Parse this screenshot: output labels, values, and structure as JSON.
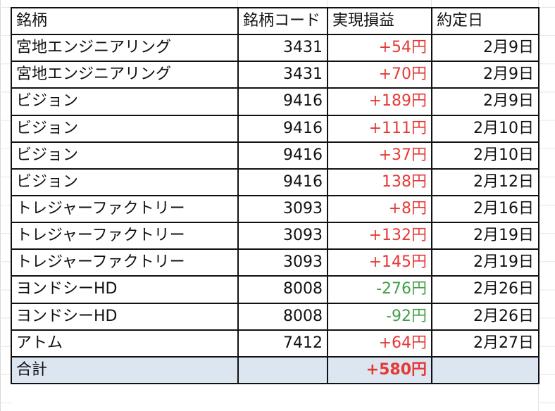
{
  "header": {
    "name": "銘柄",
    "code": "銘柄コード",
    "pl": "実現損益",
    "date": "約定日"
  },
  "rows": [
    {
      "name": "宮地エンジニアリング",
      "code": "3431",
      "pl": "+54円",
      "sign": "pos",
      "date": "2月9日"
    },
    {
      "name": "宮地エンジニアリング",
      "code": "3431",
      "pl": "+70円",
      "sign": "pos",
      "date": "2月9日"
    },
    {
      "name": "ビジョン",
      "code": "9416",
      "pl": "+189円",
      "sign": "pos",
      "date": "2月9日"
    },
    {
      "name": "ビジョン",
      "code": "9416",
      "pl": "+111円",
      "sign": "pos",
      "date": "2月10日"
    },
    {
      "name": "ビジョン",
      "code": "9416",
      "pl": "+37円",
      "sign": "pos",
      "date": "2月10日"
    },
    {
      "name": "ビジョン",
      "code": "9416",
      "pl": "138円",
      "sign": "pos",
      "date": "2月12日"
    },
    {
      "name": "トレジャーファクトリー",
      "code": "3093",
      "pl": "+8円",
      "sign": "pos",
      "date": "2月16日"
    },
    {
      "name": "トレジャーファクトリー",
      "code": "3093",
      "pl": "+132円",
      "sign": "pos",
      "date": "2月19日"
    },
    {
      "name": "トレジャーファクトリー",
      "code": "3093",
      "pl": "+145円",
      "sign": "pos",
      "date": "2月19日"
    },
    {
      "name": "ヨンドシーHD",
      "code": "8008",
      "pl": "-276円",
      "sign": "neg",
      "date": "2月26日"
    },
    {
      "name": "ヨンドシーHD",
      "code": "8008",
      "pl": "-92円",
      "sign": "neg",
      "date": "2月26日"
    },
    {
      "name": "アトム",
      "code": "7412",
      "pl": "+64円",
      "sign": "pos",
      "date": "2月27日"
    }
  ],
  "total": {
    "label": "合計",
    "amount": "+580円"
  },
  "colors": {
    "positive": "#e53935",
    "negative": "#43a047",
    "total_fill": "#dce6f1",
    "border": "#111111"
  }
}
